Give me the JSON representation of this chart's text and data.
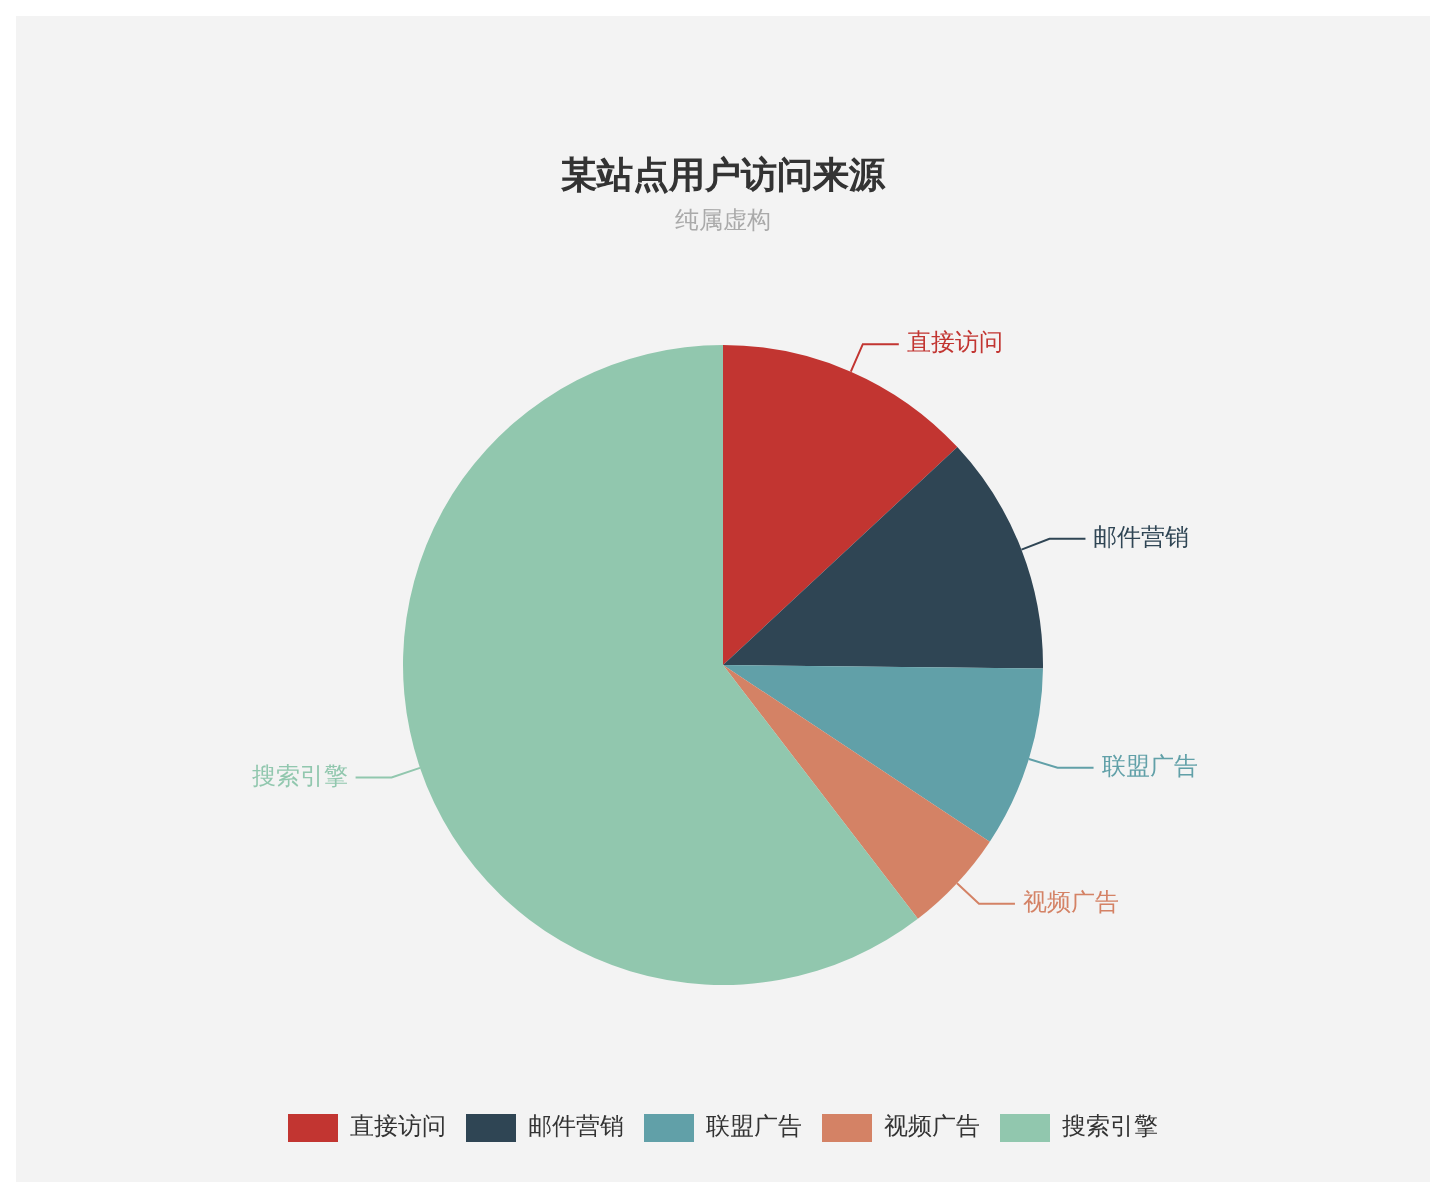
{
  "chart_data": {
    "type": "pie",
    "title": "某站点用户访问来源",
    "subtitle": "纯属虚构",
    "categories": [
      "直接访问",
      "邮件营销",
      "联盟广告",
      "视频广告",
      "搜索引擎"
    ],
    "values": [
      13.08,
      12.1,
      9.13,
      5.27,
      60.42
    ],
    "colors": [
      "#c23531",
      "#2f4554",
      "#61a0a8",
      "#d48265",
      "#91c7ae"
    ],
    "legend": "bottom"
  }
}
